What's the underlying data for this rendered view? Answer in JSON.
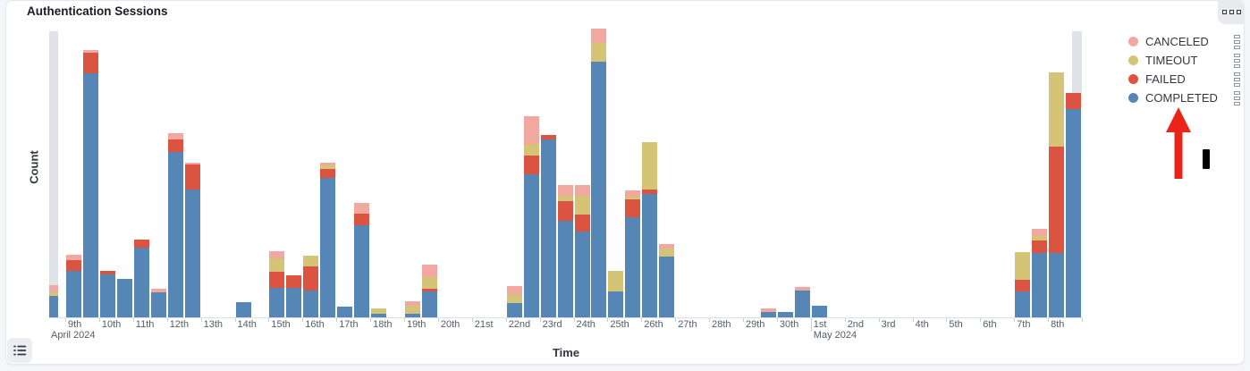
{
  "panel": {
    "title": "Authentication Sessions",
    "menu_button_icon": "panel-options-ellipsis",
    "legend_toggle_icon": "list"
  },
  "legend": {
    "items": [
      {
        "label": "CANCELED",
        "color": "#f0a8a0"
      },
      {
        "label": "TIMEOUT",
        "color": "#d6c476"
      },
      {
        "label": "FAILED",
        "color": "#db5442"
      },
      {
        "label": "COMPLETED",
        "color": "#5586b5"
      }
    ]
  },
  "annotation": {
    "type": "red-arrow-pointing-up",
    "color": "#ea2418",
    "target": "COMPLETED legend item",
    "cursor_artifact": "black I-beam mark right of arrow"
  },
  "chart_data": {
    "type": "bar",
    "stacked": true,
    "title": "Authentication Sessions",
    "xlabel": "Time",
    "ylabel": "Count",
    "legend_position": "right",
    "grid": false,
    "y_tick_labels_visible": false,
    "values_note": "counts estimated from pixel heights; no numeric y scale shown",
    "bucket_hours": 12,
    "series_order_bottom_to_top": [
      "COMPLETED",
      "FAILED",
      "TIMEOUT",
      "CANCELED"
    ],
    "x_tick_labels": [
      "9th",
      "10th",
      "11th",
      "12th",
      "13th",
      "14th",
      "15th",
      "16th",
      "17th",
      "18th",
      "19th",
      "20th",
      "21st",
      "22nd",
      "23rd",
      "24th",
      "25th",
      "26th",
      "27th",
      "28th",
      "29th",
      "30th",
      "1st",
      "2nd",
      "3rd",
      "4th",
      "5th",
      "6th",
      "7th",
      "8th"
    ],
    "month_labels": [
      "April 2024",
      "May 2024"
    ],
    "partial_bucket_color": "#e1e2e7",
    "bars": [
      {
        "label": "Apr 8 PM",
        "day": -1,
        "h": 1,
        "completed": 24,
        "failed": 0,
        "timeout": 4,
        "canceled": 8,
        "partial": "start"
      },
      {
        "label": "Apr 9 AM",
        "day": 0,
        "h": 0,
        "completed": 52,
        "failed": 12,
        "timeout": 0,
        "canceled": 6
      },
      {
        "label": "Apr 9 PM",
        "day": 0,
        "h": 1,
        "completed": 273,
        "failed": 23,
        "timeout": 0,
        "canceled": 3
      },
      {
        "label": "Apr 10 AM",
        "day": 1,
        "h": 0,
        "completed": 48,
        "failed": 4,
        "timeout": 0,
        "canceled": 0
      },
      {
        "label": "Apr 10 PM",
        "day": 1,
        "h": 1,
        "completed": 43,
        "failed": 0,
        "timeout": 0,
        "canceled": 0
      },
      {
        "label": "Apr 11 AM",
        "day": 2,
        "h": 0,
        "completed": 78,
        "failed": 9,
        "timeout": 0,
        "canceled": 0
      },
      {
        "label": "Apr 11 PM",
        "day": 2,
        "h": 1,
        "completed": 28,
        "failed": 0,
        "timeout": 0,
        "canceled": 4
      },
      {
        "label": "Apr 12 AM",
        "day": 3,
        "h": 0,
        "completed": 185,
        "failed": 14,
        "timeout": 0,
        "canceled": 7
      },
      {
        "label": "Apr 12 PM",
        "day": 3,
        "h": 1,
        "completed": 143,
        "failed": 28,
        "timeout": 0,
        "canceled": 2
      },
      {
        "label": "Apr 14 AM",
        "day": 5,
        "h": 0,
        "completed": 17,
        "failed": 0,
        "timeout": 0,
        "canceled": 0
      },
      {
        "label": "Apr 15 AM",
        "day": 6,
        "h": 0,
        "completed": 33,
        "failed": 18,
        "timeout": 15,
        "canceled": 8
      },
      {
        "label": "Apr 15 PM",
        "day": 6,
        "h": 1,
        "completed": 33,
        "failed": 14,
        "timeout": 0,
        "canceled": 0
      },
      {
        "label": "Apr 16 AM",
        "day": 7,
        "h": 0,
        "completed": 30,
        "failed": 27,
        "timeout": 12,
        "canceled": 0
      },
      {
        "label": "Apr 16 PM",
        "day": 7,
        "h": 1,
        "completed": 156,
        "failed": 10,
        "timeout": 4,
        "canceled": 3
      },
      {
        "label": "Apr 17 AM",
        "day": 8,
        "h": 0,
        "completed": 12,
        "failed": 0,
        "timeout": 0,
        "canceled": 0
      },
      {
        "label": "Apr 17 PM",
        "day": 8,
        "h": 1,
        "completed": 103,
        "failed": 13,
        "timeout": 0,
        "canceled": 12
      },
      {
        "label": "Apr 18 AM",
        "day": 9,
        "h": 0,
        "completed": 4,
        "failed": 0,
        "timeout": 6,
        "canceled": 0
      },
      {
        "label": "Apr 19 AM",
        "day": 10,
        "h": 0,
        "completed": 4,
        "failed": 0,
        "timeout": 9,
        "canceled": 5
      },
      {
        "label": "Apr 19 PM",
        "day": 10,
        "h": 1,
        "completed": 29,
        "failed": 3,
        "timeout": 13,
        "canceled": 14
      },
      {
        "label": "Apr 22 AM",
        "day": 13,
        "h": 0,
        "completed": 16,
        "failed": 0,
        "timeout": 10,
        "canceled": 9
      },
      {
        "label": "Apr 22 PM",
        "day": 13,
        "h": 1,
        "completed": 160,
        "failed": 21,
        "timeout": 13,
        "canceled": 31
      },
      {
        "label": "Apr 23 AM",
        "day": 14,
        "h": 0,
        "completed": 199,
        "failed": 5,
        "timeout": 0,
        "canceled": 0
      },
      {
        "label": "Apr 23 PM",
        "day": 14,
        "h": 1,
        "completed": 108,
        "failed": 22,
        "timeout": 6,
        "canceled": 12
      },
      {
        "label": "Apr 24 AM",
        "day": 15,
        "h": 0,
        "completed": 96,
        "failed": 19,
        "timeout": 21,
        "canceled": 12
      },
      {
        "label": "Apr 24 PM",
        "day": 15,
        "h": 1,
        "completed": 286,
        "failed": 0,
        "timeout": 21,
        "canceled": 16
      },
      {
        "label": "Apr 25 AM",
        "day": 16,
        "h": 0,
        "completed": 29,
        "failed": 0,
        "timeout": 23,
        "canceled": 0
      },
      {
        "label": "Apr 25 PM",
        "day": 16,
        "h": 1,
        "completed": 112,
        "failed": 20,
        "timeout": 3,
        "canceled": 7
      },
      {
        "label": "Apr 26 AM",
        "day": 17,
        "h": 0,
        "completed": 138,
        "failed": 5,
        "timeout": 53,
        "canceled": 0
      },
      {
        "label": "Apr 26 PM",
        "day": 17,
        "h": 1,
        "completed": 68,
        "failed": 0,
        "timeout": 9,
        "canceled": 5
      },
      {
        "label": "Apr 29 PM",
        "day": 20,
        "h": 1,
        "completed": 6,
        "failed": 0,
        "timeout": 0,
        "canceled": 4
      },
      {
        "label": "Apr 30 AM",
        "day": 21,
        "h": 0,
        "completed": 6,
        "failed": 0,
        "timeout": 0,
        "canceled": 0
      },
      {
        "label": "Apr 30 PM",
        "day": 21,
        "h": 1,
        "completed": 30,
        "failed": 0,
        "timeout": 0,
        "canceled": 4
      },
      {
        "label": "May 1 AM",
        "day": 22,
        "h": 0,
        "completed": 13,
        "failed": 0,
        "timeout": 0,
        "canceled": 0
      },
      {
        "label": "May 7 AM",
        "day": 28,
        "h": 0,
        "completed": 29,
        "failed": 13,
        "timeout": 31,
        "canceled": 0
      },
      {
        "label": "May 7 PM",
        "day": 28,
        "h": 1,
        "completed": 72,
        "failed": 14,
        "timeout": 5,
        "canceled": 8
      },
      {
        "label": "May 8 AM",
        "day": 29,
        "h": 0,
        "completed": 72,
        "failed": 119,
        "timeout": 83,
        "canceled": 0
      },
      {
        "label": "May 8 PM",
        "day": 29,
        "h": 1,
        "completed": 233,
        "failed": 18,
        "timeout": 0,
        "canceled": 0,
        "partial": "end"
      }
    ]
  }
}
